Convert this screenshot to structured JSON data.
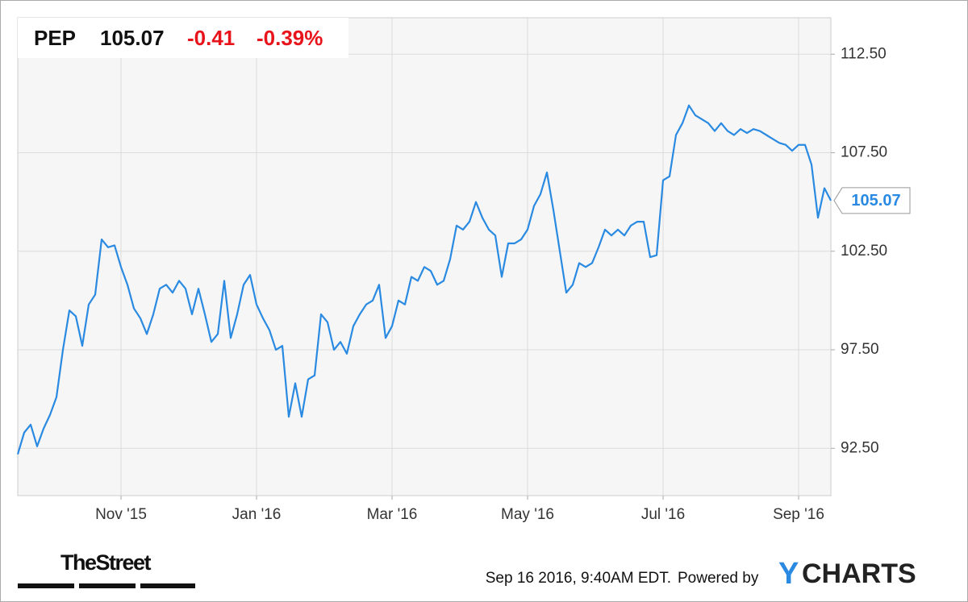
{
  "chart_data": {
    "type": "line",
    "quote": {
      "symbol": "PEP",
      "price": 105.07,
      "change": -0.41,
      "change_pct": {
        "value": -0.39,
        "label": "-0.39%"
      }
    },
    "categories": [
      null,
      null,
      null,
      null,
      null,
      null,
      null,
      null,
      null,
      null,
      null,
      null,
      null,
      null,
      null,
      null,
      "Nov '15",
      null,
      null,
      null,
      null,
      null,
      null,
      null,
      null,
      null,
      null,
      null,
      null,
      null,
      null,
      null,
      null,
      null,
      null,
      null,
      null,
      "Jan '16",
      null,
      null,
      null,
      null,
      null,
      null,
      null,
      null,
      null,
      null,
      null,
      null,
      null,
      null,
      null,
      null,
      null,
      null,
      null,
      null,
      "Mar '16",
      null,
      null,
      null,
      null,
      null,
      null,
      null,
      null,
      null,
      null,
      null,
      null,
      null,
      null,
      null,
      null,
      null,
      null,
      null,
      null,
      "May '16",
      null,
      null,
      null,
      null,
      null,
      null,
      null,
      null,
      null,
      null,
      null,
      null,
      null,
      null,
      null,
      null,
      null,
      null,
      null,
      null,
      "Jul '16",
      null,
      null,
      null,
      null,
      null,
      null,
      null,
      null,
      null,
      null,
      null,
      null,
      null,
      null,
      null,
      null,
      null,
      null,
      null,
      null,
      "Sep '16",
      null,
      null,
      null,
      null,
      null
    ],
    "series": [
      {
        "name": "PEP",
        "color": "#2a8ae2",
        "values": [
          92.2,
          93.3,
          93.7,
          92.6,
          93.5,
          94.2,
          95.1,
          97.5,
          99.5,
          99.2,
          97.7,
          99.8,
          100.3,
          103.1,
          102.7,
          102.8,
          101.7,
          100.8,
          99.6,
          99.1,
          98.3,
          99.3,
          100.6,
          100.8,
          100.4,
          101.0,
          100.6,
          99.3,
          100.6,
          99.3,
          97.9,
          98.3,
          101.0,
          98.1,
          99.3,
          100.8,
          101.3,
          99.8,
          99.1,
          98.5,
          97.5,
          97.7,
          94.1,
          95.8,
          94.1,
          96.0,
          96.2,
          99.3,
          98.9,
          97.5,
          97.9,
          97.3,
          98.7,
          99.3,
          99.8,
          100.0,
          100.8,
          98.1,
          98.7,
          100.0,
          99.8,
          101.2,
          101.0,
          101.7,
          101.5,
          100.8,
          101.0,
          102.1,
          103.8,
          103.6,
          104.0,
          105.0,
          104.2,
          103.6,
          103.3,
          101.2,
          102.9,
          102.9,
          103.1,
          103.6,
          104.8,
          105.4,
          106.5,
          104.6,
          102.5,
          100.4,
          100.8,
          101.9,
          101.7,
          101.9,
          102.7,
          103.6,
          103.3,
          103.6,
          103.3,
          103.8,
          104.0,
          104.0,
          102.2,
          102.3,
          106.1,
          106.3,
          108.4,
          109.0,
          109.9,
          109.4,
          109.2,
          109.0,
          108.6,
          109.0,
          108.6,
          108.4,
          108.7,
          108.5,
          108.7,
          108.6,
          108.4,
          108.2,
          108.0,
          107.9,
          107.6,
          107.9,
          107.9,
          106.9,
          104.2,
          105.7,
          105.07
        ]
      }
    ],
    "ylim": [
      90.1,
      114.35
    ],
    "yticks": [
      {
        "value": 92.5,
        "label": "92.50"
      },
      {
        "value": 97.5,
        "label": "97.50"
      },
      {
        "value": 102.5,
        "label": "102.50"
      },
      {
        "value": 107.5,
        "label": "107.50"
      },
      {
        "value": 112.5,
        "label": "112.50"
      }
    ],
    "grid": true,
    "footer": {
      "timestamp": "Sep 16 2016, 9:40AM EDT.",
      "powered_by": "Powered by",
      "brand_mark": "Y",
      "brand_rest": "CHARTS",
      "publisher": "TheStreet"
    }
  }
}
